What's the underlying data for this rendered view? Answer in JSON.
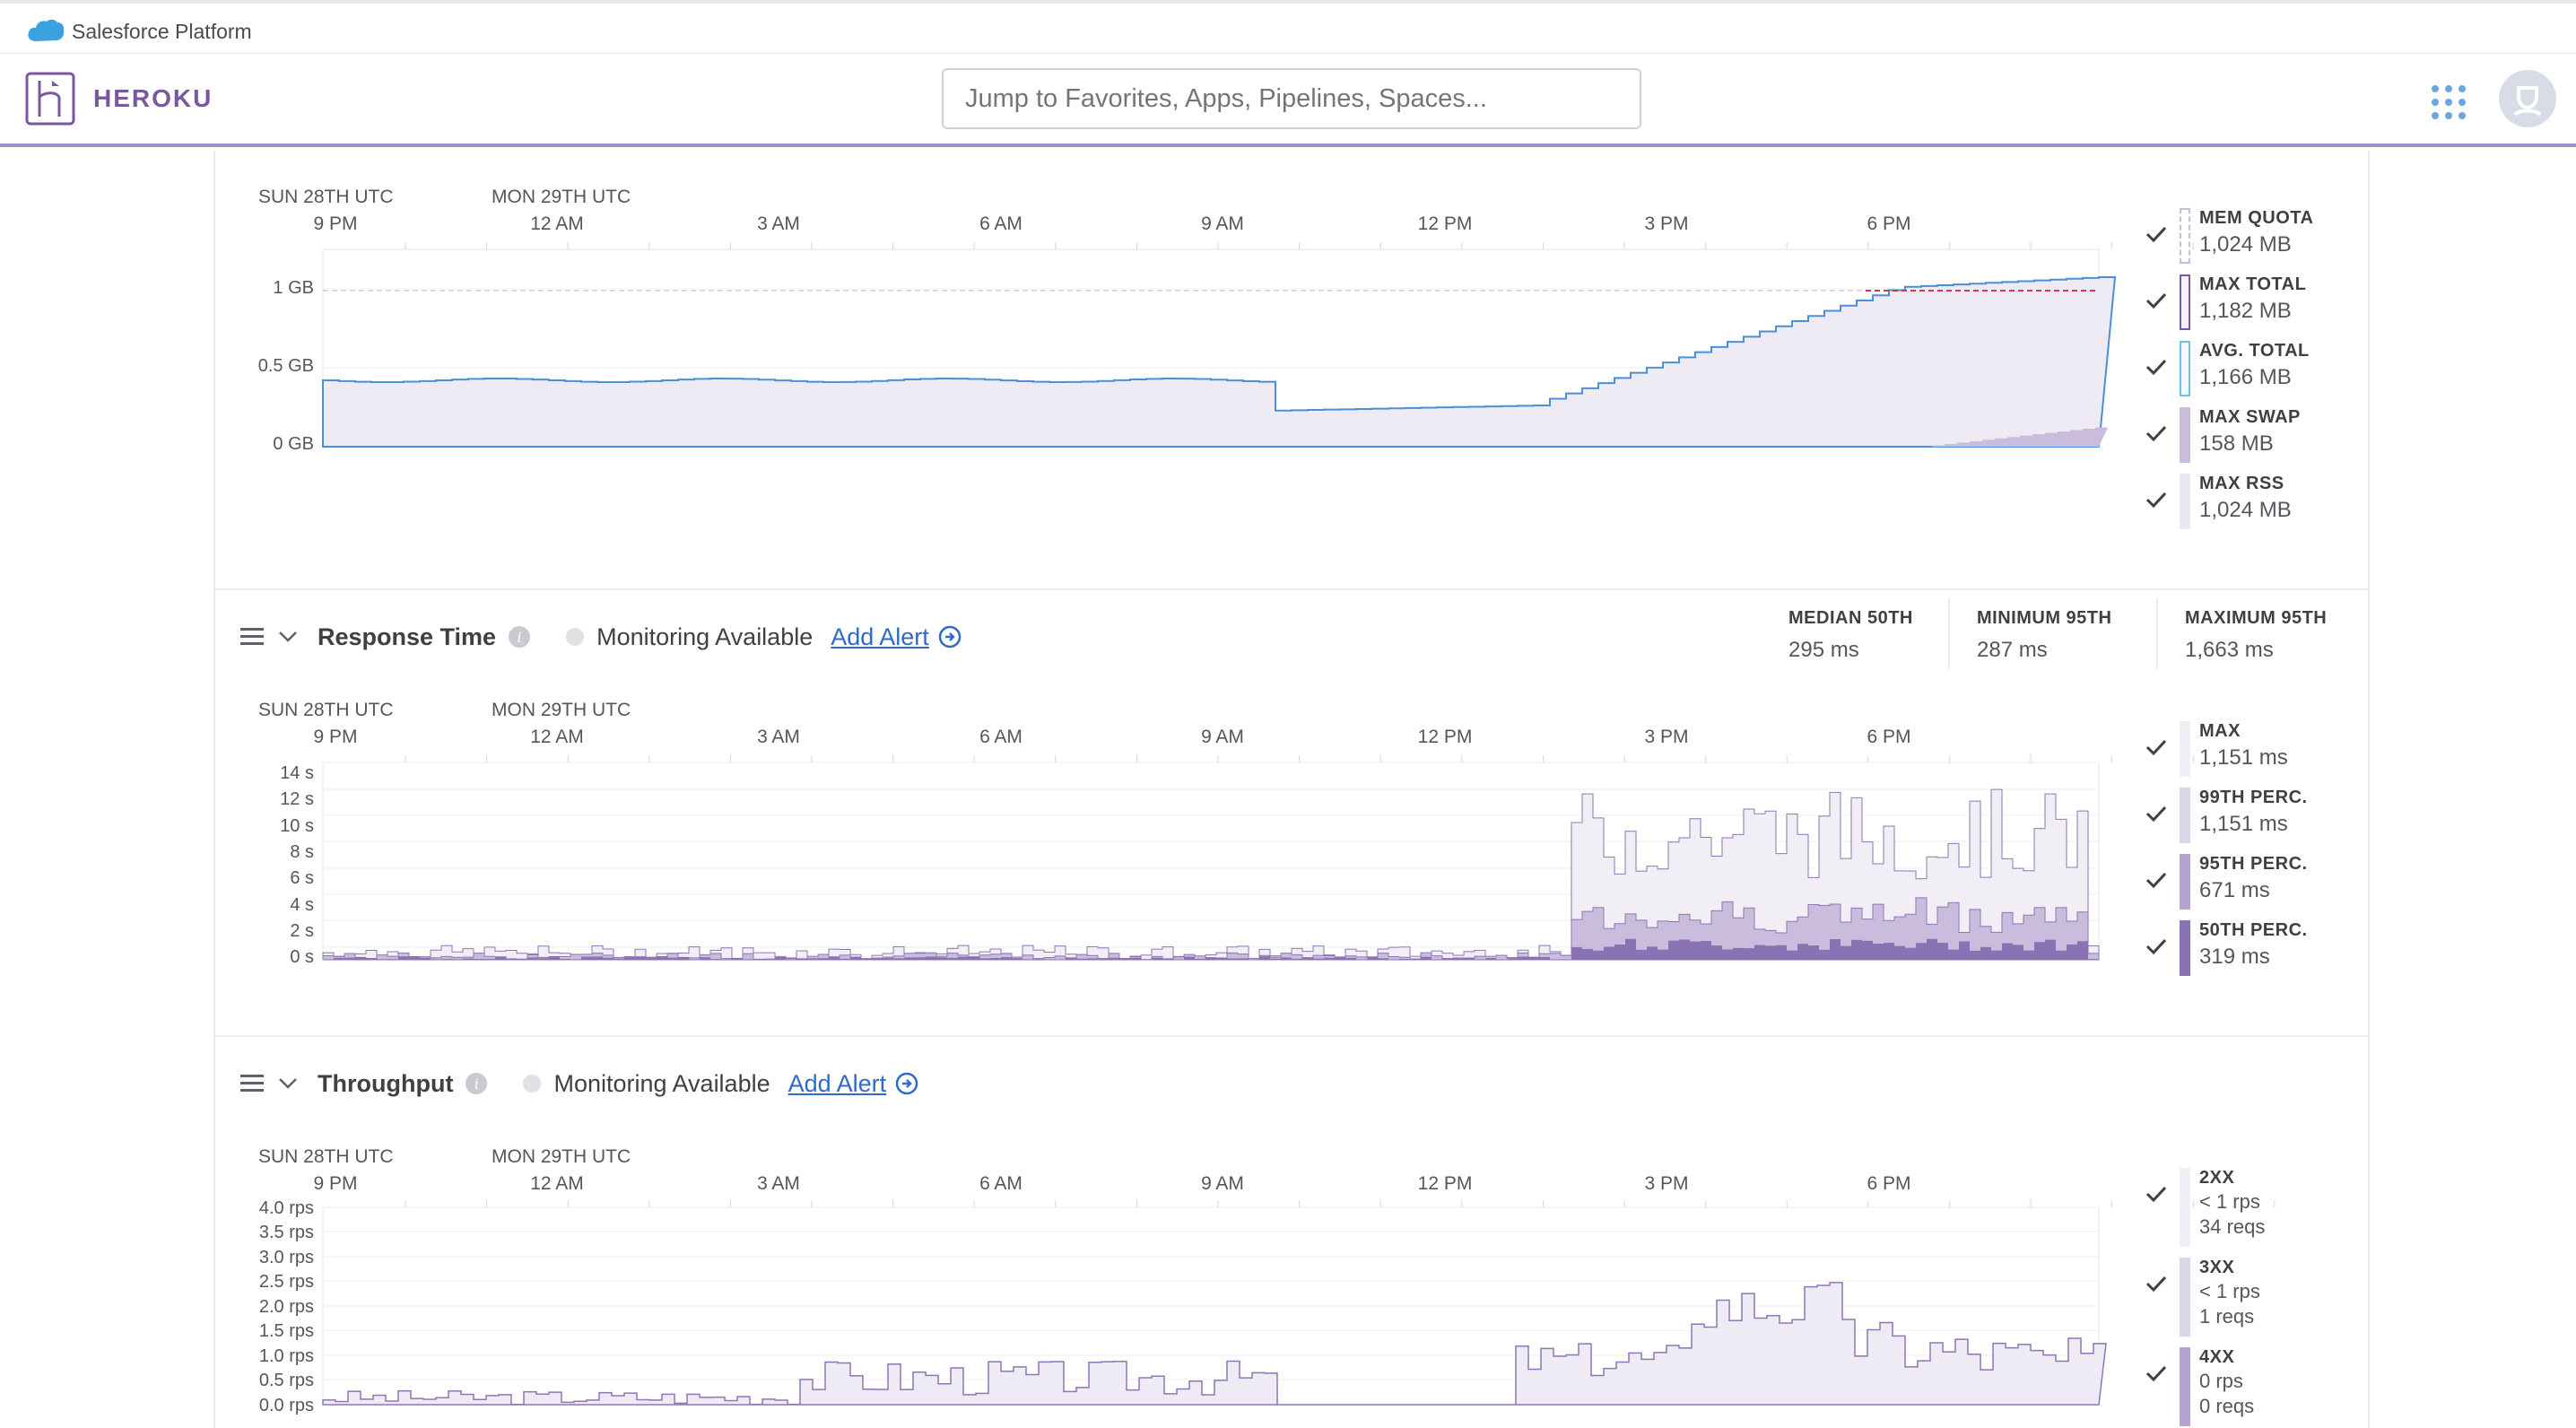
{
  "salesforce": {
    "label": "Salesforce Platform"
  },
  "nav": {
    "brand": "HEROKU",
    "search_placeholder": "Jump to Favorites, Apps, Pipelines, Spaces..."
  },
  "time_axis": {
    "day1": "SUN 28TH UTC",
    "day2": "MON 29TH UTC",
    "ticks": [
      "9 PM",
      "12 AM",
      "3 AM",
      "6 AM",
      "9 AM",
      "12 PM",
      "3 PM",
      "6 PM"
    ]
  },
  "memory": {
    "y_labels": [
      "1 GB",
      "0.5 GB",
      "0 GB"
    ],
    "legend": [
      {
        "key": "MEM QUOTA",
        "value": "1,024 MB"
      },
      {
        "key": "MAX TOTAL",
        "value": "1,182 MB"
      },
      {
        "key": "AVG. TOTAL",
        "value": "1,166 MB"
      },
      {
        "key": "MAX SWAP",
        "value": "158 MB"
      },
      {
        "key": "MAX RSS",
        "value": "1,024 MB"
      }
    ]
  },
  "response_time": {
    "title": "Response Time",
    "monitoring": "Monitoring Available",
    "add_alert": "Add Alert",
    "stats": [
      {
        "key": "MEDIAN 50TH",
        "value": "295 ms"
      },
      {
        "key": "MINIMUM 95TH",
        "value": "287 ms"
      },
      {
        "key": "MAXIMUM 95TH",
        "value": "1,663 ms"
      }
    ],
    "y_labels": [
      "14 s",
      "12 s",
      "10 s",
      "8 s",
      "6 s",
      "4 s",
      "2 s",
      "0 s"
    ],
    "legend": [
      {
        "key": "MAX",
        "value": "1,151 ms"
      },
      {
        "key": "99TH PERC.",
        "value": "1,151 ms"
      },
      {
        "key": "95TH PERC.",
        "value": "671 ms"
      },
      {
        "key": "50TH PERC.",
        "value": "319 ms"
      }
    ]
  },
  "throughput": {
    "title": "Throughput",
    "monitoring": "Monitoring Available",
    "add_alert": "Add Alert",
    "y_labels": [
      "4.0 rps",
      "3.5 rps",
      "3.0 rps",
      "2.5 rps",
      "2.0 rps",
      "1.5 rps",
      "1.0 rps",
      "0.5 rps",
      "0.0 rps"
    ],
    "legend": [
      {
        "key": "2XX",
        "rate": "< 1 rps",
        "count": "34 reqs"
      },
      {
        "key": "3XX",
        "rate": "< 1 rps",
        "count": "1 reqs"
      },
      {
        "key": "4XX",
        "rate": "0 rps",
        "count": "0 reqs"
      }
    ]
  },
  "colors": {
    "brand": "#79589f",
    "fill_light": "#efebf5",
    "fill_mid": "#c9bcdc",
    "fill_dark": "#8f76b6",
    "line_blue": "#4a8fd8",
    "quota_red": "#e0314b"
  }
}
